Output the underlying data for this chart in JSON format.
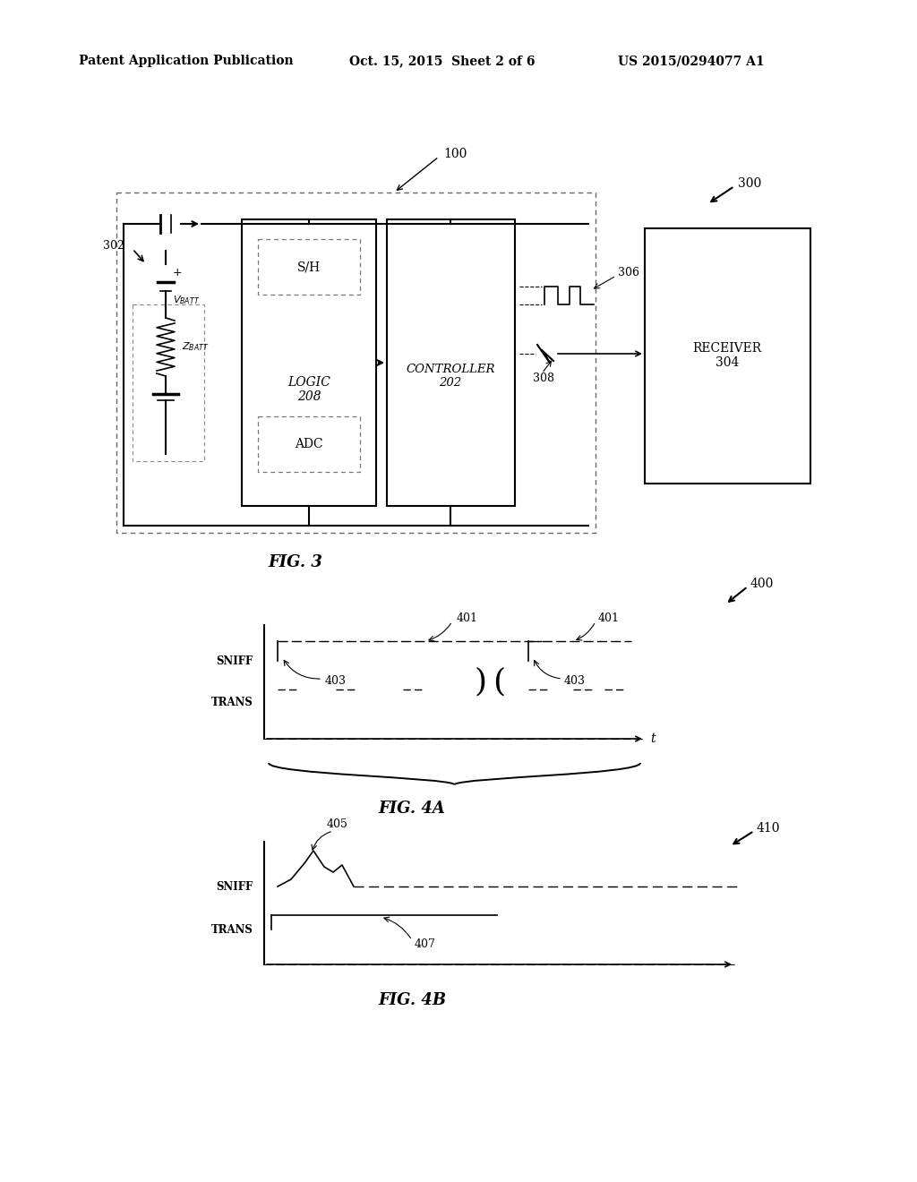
{
  "bg_color": "#ffffff",
  "header_left": "Patent Application Publication",
  "header_mid": "Oct. 15, 2015  Sheet 2 of 6",
  "header_right": "US 2015/0294077 A1",
  "fig3_label": "FIG. 3",
  "fig4a_label": "FIG. 4A",
  "fig4b_label": "FIG. 4B",
  "label_100": "100",
  "label_300": "300",
  "label_302": "302",
  "label_306": "306",
  "label_308": "308",
  "label_400": "400",
  "label_401a": "401",
  "label_401b": "401",
  "label_403a": "403",
  "label_403b": "403",
  "label_405": "405",
  "label_407": "407",
  "label_410": "410",
  "logic_label": "LOGIC\n208",
  "controller_label": "CONTROLLER\n202",
  "receiver_label": "RECEIVER\n304",
  "sh_label": "S/H",
  "adc_label": "ADC",
  "sniff_label": "SNIFF",
  "trans_label": "TRANS",
  "t_label": "t"
}
